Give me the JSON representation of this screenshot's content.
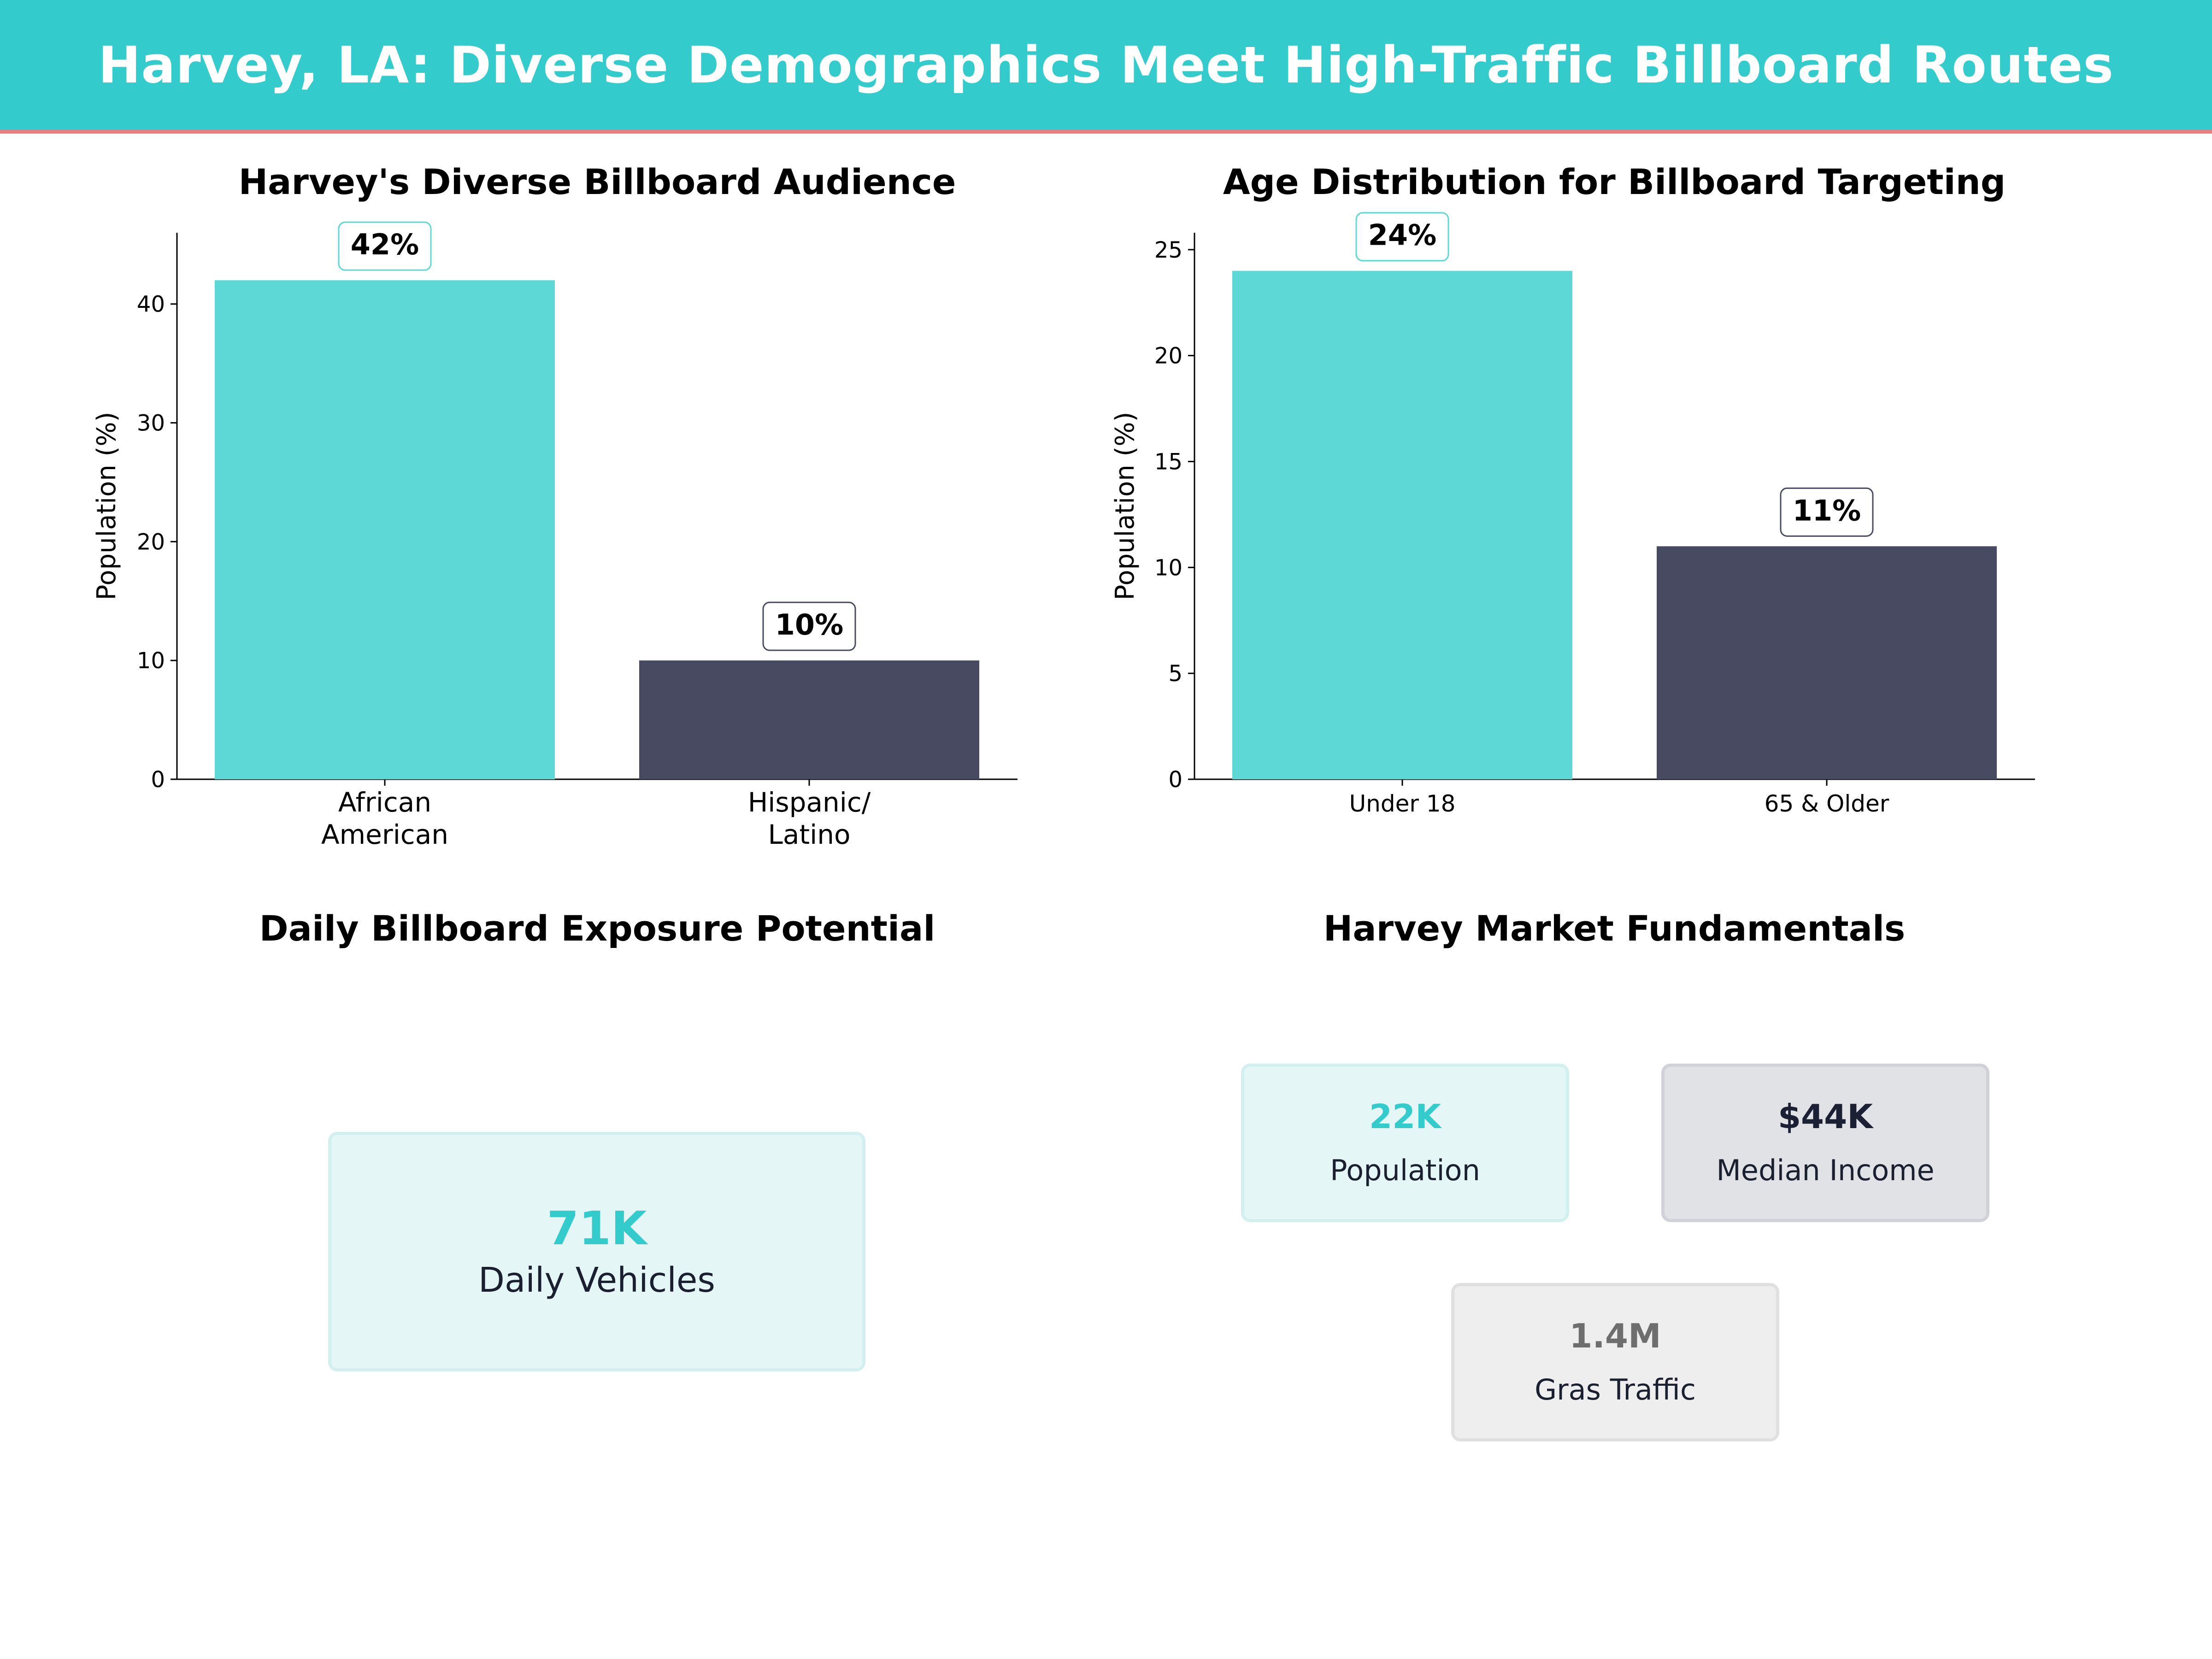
{
  "header": {
    "title": "Harvey, LA: Diverse Demographics Meet High-Traffic Billboard Routes"
  },
  "colors": {
    "teal": "#34cbcc",
    "bar_teal": "#5dd8d6",
    "navy": "#474a60",
    "accent_line": "#ef7d7d"
  },
  "chart_data": [
    {
      "type": "bar",
      "title": "Harvey's Diverse Billboard Audience",
      "categories": [
        [
          "African",
          "American"
        ],
        [
          "Hispanic/",
          "Latino"
        ]
      ],
      "values": [
        42,
        10
      ],
      "data_labels": [
        "42%",
        "10%"
      ],
      "ylabel": "Population (%)",
      "xlabel": "",
      "ylim": [
        0,
        46
      ],
      "yticks": [
        0,
        10,
        20,
        30,
        40
      ],
      "grid": false
    },
    {
      "type": "bar",
      "title": "Age Distribution for Billboard Targeting",
      "categories": [
        [
          "Under 18"
        ],
        [
          "65 & Older"
        ]
      ],
      "values": [
        24,
        11
      ],
      "data_labels": [
        "24%",
        "11%"
      ],
      "ylabel": "Population (%)",
      "xlabel": "",
      "ylim": [
        0,
        25.8
      ],
      "yticks": [
        0,
        5,
        10,
        15,
        20,
        25
      ],
      "grid": false
    }
  ],
  "exposure": {
    "title": "Daily Billboard Exposure Potential",
    "value": "71K",
    "label": "Daily Vehicles"
  },
  "fundamentals": {
    "title": "Harvey Market Fundamentals",
    "population": {
      "value": "22K",
      "label": "Population"
    },
    "income": {
      "value": "$44K",
      "label": "Median Income"
    },
    "gras": {
      "value": "1.4M",
      "label": "Gras Traffic"
    }
  }
}
